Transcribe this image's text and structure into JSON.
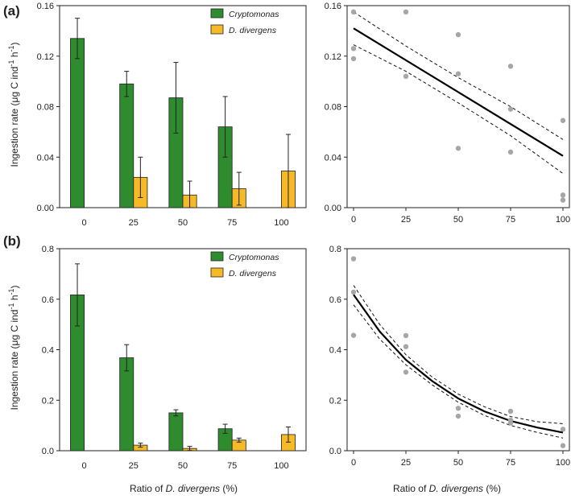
{
  "figure": {
    "panel_labels": [
      "(a)",
      "(b)"
    ],
    "ylabel_parts": [
      "Ingestion rate (μg C ind",
      "-1",
      " h",
      "-1",
      ")"
    ],
    "xlabel_parts": [
      "Ratio of ",
      "D. divergens",
      " (%)"
    ]
  },
  "colors": {
    "cryptomonas": "#2e8b2e",
    "d_divergens": "#f6b928",
    "scatter": "#a6a6a6",
    "fit": "#000000"
  },
  "chart_data": [
    {
      "id": "a-bars",
      "type": "bar",
      "panel": "(a)",
      "categories": [
        "0",
        "25",
        "50",
        "75",
        "100"
      ],
      "series": [
        {
          "name": "Cryptomonas",
          "values": [
            0.134,
            0.098,
            0.087,
            0.064,
            null
          ],
          "errors": [
            0.016,
            0.01,
            0.028,
            0.024,
            null
          ]
        },
        {
          "name": "D. divergens",
          "values": [
            null,
            0.024,
            0.01,
            0.015,
            0.029
          ],
          "errors": [
            null,
            0.016,
            0.011,
            0.013,
            0.029
          ]
        }
      ],
      "ylim": [
        0,
        0.16
      ],
      "yticks": [
        "0.00",
        "0.04",
        "0.08",
        "0.12",
        "0.16"
      ],
      "legend": [
        "Cryptomonas",
        "D. divergens"
      ],
      "legend_position": "top-right"
    },
    {
      "id": "a-scatter",
      "type": "scatter",
      "panel": "(a)",
      "x": [
        0,
        0,
        0,
        25,
        25,
        50,
        50,
        50,
        75,
        75,
        75,
        100,
        100,
        100
      ],
      "y": [
        0.155,
        0.126,
        0.118,
        0.155,
        0.104,
        0.137,
        0.106,
        0.047,
        0.112,
        0.078,
        0.044,
        0.069,
        0.01,
        0.006
      ],
      "fit": {
        "model": "linear",
        "x": [
          0,
          100
        ],
        "y": [
          0.142,
          0.041
        ]
      },
      "ci_upper": {
        "x": [
          0,
          25,
          50,
          75,
          100
        ],
        "y": [
          0.155,
          0.128,
          0.103,
          0.08,
          0.054
        ]
      },
      "ci_lower": {
        "x": [
          0,
          25,
          50,
          75,
          100
        ],
        "y": [
          0.129,
          0.108,
          0.083,
          0.057,
          0.027
        ]
      },
      "xlim": [
        0,
        100
      ],
      "ylim": [
        0,
        0.16
      ],
      "xticks": [
        "0",
        "25",
        "50",
        "75",
        "100"
      ],
      "yticks": [
        "0.00",
        "0.04",
        "0.08",
        "0.12",
        "0.16"
      ]
    },
    {
      "id": "b-bars",
      "type": "bar",
      "panel": "(b)",
      "categories": [
        "0",
        "25",
        "50",
        "75",
        "100"
      ],
      "series": [
        {
          "name": "Cryptomonas",
          "values": [
            0.617,
            0.368,
            0.15,
            0.087,
            null
          ],
          "errors": [
            0.123,
            0.052,
            0.012,
            0.018,
            null
          ]
        },
        {
          "name": "D. divergens",
          "values": [
            null,
            0.022,
            0.009,
            0.042,
            0.064
          ],
          "errors": [
            null,
            0.008,
            0.008,
            0.008,
            0.03
          ]
        }
      ],
      "ylim": [
        0,
        0.8
      ],
      "yticks": [
        "0.0",
        "0.2",
        "0.4",
        "0.6",
        "0.8"
      ],
      "legend": [
        "Cryptomonas",
        "D. divergens"
      ],
      "legend_position": "top-right"
    },
    {
      "id": "b-scatter",
      "type": "scatter",
      "panel": "(b)",
      "x": [
        0,
        0,
        0,
        25,
        25,
        25,
        50,
        50,
        75,
        75,
        75,
        100,
        100
      ],
      "y": [
        0.76,
        0.628,
        0.457,
        0.456,
        0.412,
        0.311,
        0.168,
        0.137,
        0.156,
        0.121,
        0.11,
        0.085,
        0.02
      ],
      "fit": {
        "model": "exponential",
        "x": [
          0,
          12.5,
          25,
          37.5,
          50,
          62.5,
          75,
          87.5,
          100
        ],
        "y": [
          0.618,
          0.472,
          0.36,
          0.276,
          0.207,
          0.156,
          0.118,
          0.092,
          0.072
        ]
      },
      "ci_upper": {
        "x": [
          0,
          12.5,
          25,
          37.5,
          50,
          62.5,
          75,
          87.5,
          100
        ],
        "y": [
          0.655,
          0.5,
          0.38,
          0.292,
          0.224,
          0.174,
          0.135,
          0.115,
          0.107
        ]
      },
      "ci_lower": {
        "x": [
          0,
          12.5,
          25,
          37.5,
          50,
          62.5,
          75,
          87.5,
          100
        ],
        "y": [
          0.578,
          0.442,
          0.34,
          0.261,
          0.192,
          0.14,
          0.1,
          0.073,
          0.05
        ]
      },
      "xlim": [
        0,
        100
      ],
      "ylim": [
        0,
        0.8
      ],
      "xticks": [
        "0",
        "25",
        "50",
        "75",
        "100"
      ],
      "yticks": [
        "0.0",
        "0.2",
        "0.4",
        "0.6",
        "0.8"
      ]
    }
  ]
}
